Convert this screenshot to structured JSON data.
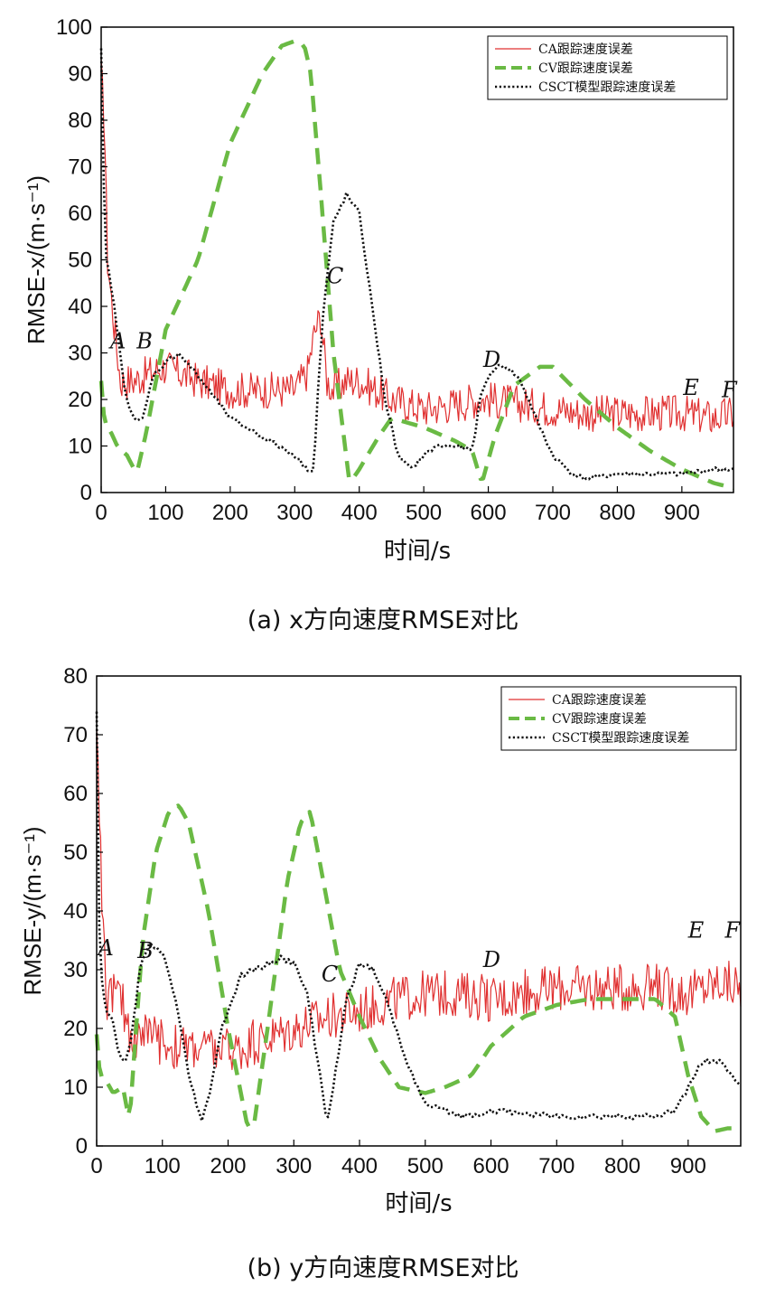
{
  "colors": {
    "ca": "#e03030",
    "cv": "#6aba44",
    "csct": "#111111",
    "axis": "#000000"
  },
  "chart_data": [
    {
      "type": "line",
      "panel": "a",
      "caption": "(a) x方向速度RMSE对比",
      "xlabel": "时间/s",
      "ylabel": "RMSE-x/(m·s⁻¹)",
      "xlim": [
        0,
        980
      ],
      "ylim": [
        0,
        100
      ],
      "xticks": [
        0,
        100,
        200,
        300,
        400,
        500,
        600,
        700,
        800,
        900
      ],
      "yticks": [
        0,
        10,
        20,
        30,
        40,
        50,
        60,
        70,
        80,
        90,
        100
      ],
      "legend_position": "top-right",
      "grid": false,
      "annotations": [
        {
          "text": "A",
          "x": 14,
          "y": 31
        },
        {
          "text": "B",
          "x": 55,
          "y": 31
        },
        {
          "text": "C",
          "x": 350,
          "y": 45
        },
        {
          "text": "D",
          "x": 592,
          "y": 27
        },
        {
          "text": "E",
          "x": 902,
          "y": 21
        },
        {
          "text": "F",
          "x": 962,
          "y": 20.5
        }
      ],
      "series": [
        {
          "name": "CA跟踪速度误差",
          "style": "solid",
          "noise": 4,
          "x": [
            0,
            5,
            10,
            20,
            30,
            50,
            80,
            100,
            150,
            200,
            250,
            300,
            320,
            330,
            340,
            350,
            360,
            380,
            400,
            450,
            500,
            550,
            580,
            600,
            650,
            700,
            750,
            800,
            850,
            900,
            950,
            980
          ],
          "y": [
            90,
            80,
            50,
            36,
            24,
            24,
            26,
            27,
            24,
            22,
            22,
            22,
            26,
            34,
            38,
            24,
            22,
            24,
            24,
            20,
            18,
            19,
            20,
            20,
            19,
            18,
            17,
            17,
            17,
            17,
            16,
            17
          ]
        },
        {
          "name": "CV跟踪速度误差",
          "style": "dashed",
          "noise": 0,
          "x": [
            0,
            5,
            15,
            25,
            40,
            55,
            70,
            100,
            150,
            200,
            250,
            280,
            300,
            315,
            325,
            340,
            360,
            385,
            400,
            430,
            450,
            500,
            550,
            575,
            590,
            610,
            640,
            680,
            700,
            750,
            800,
            850,
            900,
            950,
            980
          ],
          "y": [
            24,
            15,
            13,
            10,
            8,
            4,
            13,
            35,
            50,
            75,
            90,
            96,
            97,
            96,
            90,
            65,
            30,
            2,
            5,
            12,
            16,
            14,
            11,
            9,
            2,
            12,
            23,
            27,
            27,
            20,
            14,
            9,
            5,
            2,
            1
          ]
        },
        {
          "name": "CSCT模型跟踪速度误差",
          "style": "dotted",
          "noise": 0.5,
          "x": [
            0,
            3,
            8,
            15,
            25,
            35,
            45,
            55,
            65,
            80,
            100,
            120,
            150,
            200,
            250,
            300,
            320,
            330,
            335,
            345,
            360,
            380,
            400,
            420,
            440,
            460,
            480,
            500,
            520,
            550,
            575,
            590,
            610,
            630,
            650,
            680,
            700,
            730,
            750,
            800,
            850,
            900,
            950,
            980
          ],
          "y": [
            95,
            70,
            50,
            45,
            35,
            23,
            18,
            15,
            16,
            25,
            28,
            30,
            25,
            16,
            12,
            8,
            5,
            5,
            20,
            40,
            58,
            64,
            60,
            40,
            20,
            8,
            5,
            8,
            10,
            10,
            9,
            22,
            27,
            27,
            24,
            14,
            8,
            4,
            3,
            4,
            4,
            4,
            5,
            5
          ]
        }
      ]
    },
    {
      "type": "line",
      "panel": "b",
      "caption": "(b) y方向速度RMSE对比",
      "xlabel": "时间/s",
      "ylabel": "RMSE-y/(m·s⁻¹)",
      "xlim": [
        0,
        980
      ],
      "ylim": [
        0,
        80
      ],
      "xticks": [
        0,
        100,
        200,
        300,
        400,
        500,
        600,
        700,
        800,
        900
      ],
      "yticks": [
        0,
        10,
        20,
        30,
        40,
        50,
        60,
        70,
        80
      ],
      "legend_position": "top-right",
      "grid": false,
      "annotations": [
        {
          "text": "A",
          "x": 2,
          "y": 32.5
        },
        {
          "text": "B",
          "x": 62,
          "y": 32
        },
        {
          "text": "C",
          "x": 342,
          "y": 28
        },
        {
          "text": "D",
          "x": 588,
          "y": 30.5
        },
        {
          "text": "E",
          "x": 900,
          "y": 35.5
        },
        {
          "text": "F",
          "x": 956,
          "y": 35.5
        }
      ],
      "series": [
        {
          "name": "CA跟踪速度误差",
          "style": "solid",
          "noise": 4,
          "x": [
            0,
            5,
            10,
            15,
            25,
            40,
            55,
            70,
            90,
            120,
            150,
            200,
            250,
            300,
            350,
            400,
            450,
            500,
            550,
            600,
            650,
            700,
            750,
            800,
            850,
            900,
            950,
            980
          ],
          "y": [
            72,
            55,
            35,
            25,
            27,
            24,
            18,
            20,
            18,
            17,
            17,
            16,
            18,
            20,
            22,
            23,
            25,
            26,
            26,
            25,
            26,
            27,
            27,
            27,
            27,
            26,
            28,
            27
          ]
        },
        {
          "name": "CV跟踪速度误差",
          "style": "dashed",
          "noise": 0,
          "x": [
            0,
            5,
            15,
            25,
            40,
            50,
            60,
            70,
            90,
            110,
            125,
            140,
            170,
            200,
            230,
            240,
            260,
            290,
            310,
            325,
            345,
            370,
            400,
            430,
            460,
            500,
            530,
            570,
            600,
            650,
            700,
            750,
            800,
            850,
            880,
            900,
            920,
            940,
            960,
            980
          ],
          "y": [
            19,
            12,
            11,
            9,
            10,
            4,
            20,
            35,
            50,
            57,
            58,
            55,
            40,
            20,
            3,
            4,
            20,
            45,
            55,
            57,
            45,
            30,
            22,
            15,
            10,
            9,
            10,
            12,
            17,
            22,
            24,
            25,
            25,
            25,
            22,
            12,
            5,
            2.5,
            3,
            3
          ]
        },
        {
          "name": "CSCT模型跟踪速度误差",
          "style": "dotted",
          "noise": 0.5,
          "x": [
            0,
            3,
            8,
            15,
            25,
            35,
            45,
            55,
            65,
            80,
            100,
            120,
            140,
            160,
            170,
            190,
            220,
            260,
            280,
            300,
            320,
            340,
            350,
            360,
            380,
            400,
            420,
            440,
            470,
            500,
            530,
            560,
            600,
            700,
            800,
            850,
            880,
            900,
            920,
            940,
            960,
            980
          ],
          "y": [
            74,
            40,
            28,
            23,
            21,
            15,
            14,
            20,
            30,
            34,
            33,
            25,
            12,
            4,
            8,
            20,
            29,
            31,
            32,
            31,
            26,
            12,
            4,
            10,
            25,
            31,
            30,
            25,
            15,
            7,
            6,
            5,
            6,
            5,
            5,
            5,
            6,
            10,
            14,
            15,
            13,
            10
          ]
        }
      ]
    }
  ]
}
